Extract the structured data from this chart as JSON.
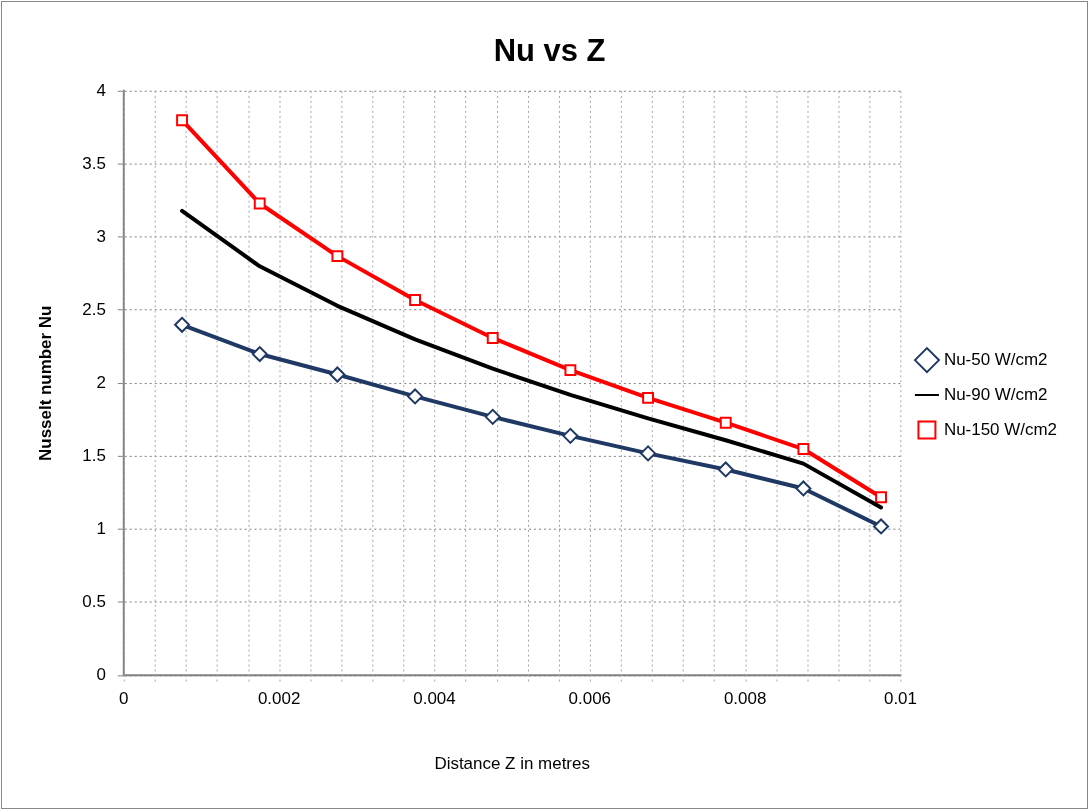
{
  "chart_data": {
    "type": "line",
    "title": "Nu vs Z",
    "xlabel": "Distance Z in metres",
    "ylabel": "Nusselt number Nu",
    "x": [
      0.00075,
      0.00175,
      0.00275,
      0.00375,
      0.00475,
      0.00575,
      0.00675,
      0.00775,
      0.00875,
      0.00975
    ],
    "xlim": [
      0,
      0.01
    ],
    "xticks": [
      0,
      0.002,
      0.004,
      0.006,
      0.008,
      0.01
    ],
    "ylim": [
      0,
      4
    ],
    "yticks": [
      0,
      0.5,
      1,
      1.5,
      2,
      2.5,
      3,
      3.5,
      4
    ],
    "grid": true,
    "legend": "right",
    "line_style": "solid",
    "series": [
      {
        "name": "Nu-50 W/cm2",
        "color": "#1f3864",
        "marker": "diamond",
        "values": [
          2.4,
          2.2,
          2.06,
          1.91,
          1.77,
          1.64,
          1.52,
          1.41,
          1.28,
          1.02
        ]
      },
      {
        "name": "Nu-90 W/cm2",
        "color": "#000000",
        "marker": "none",
        "values": [
          3.18,
          2.8,
          2.53,
          2.3,
          2.1,
          1.92,
          1.76,
          1.61,
          1.45,
          1.15
        ]
      },
      {
        "name": "Nu-150 W/cm2",
        "color": "#ff0000",
        "marker": "square",
        "values": [
          3.8,
          3.23,
          2.87,
          2.57,
          2.31,
          2.09,
          1.9,
          1.73,
          1.55,
          1.22
        ]
      }
    ]
  }
}
